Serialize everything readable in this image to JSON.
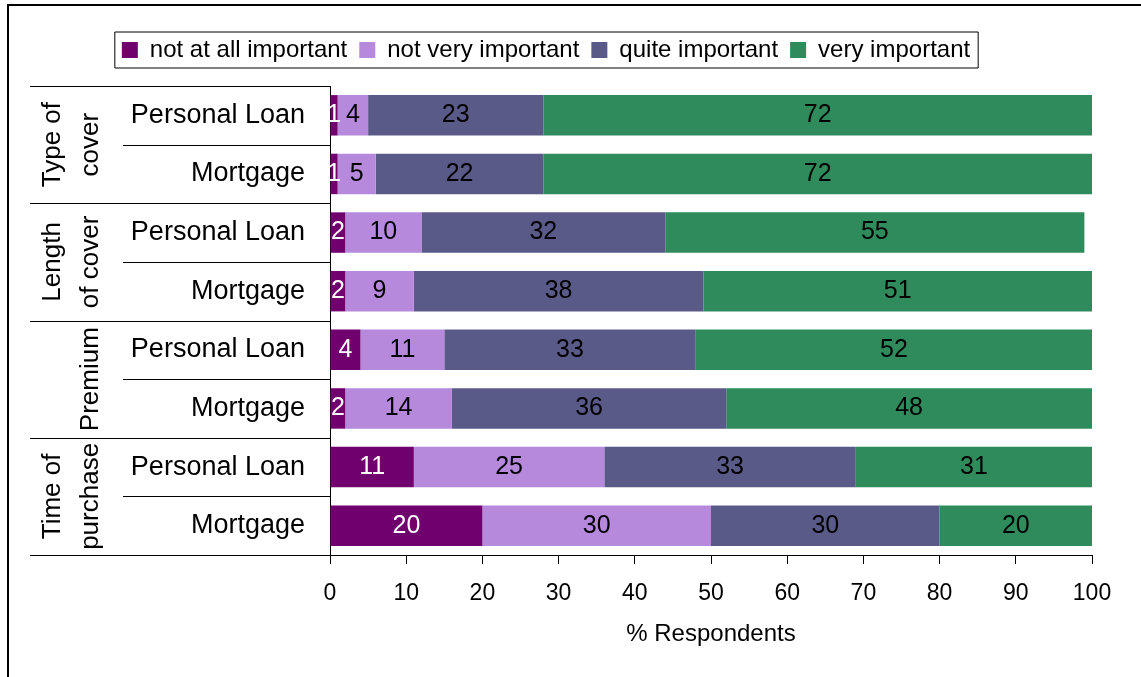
{
  "chart_data": {
    "type": "bar",
    "orientation": "horizontal",
    "stacked": true,
    "categories": [
      "Personal Loan",
      "Mortgage",
      "Personal Loan",
      "Mortgage",
      "Personal Loan",
      "Mortgage",
      "Personal Loan",
      "Mortgage"
    ],
    "annotations": [
      "Type of cover",
      "Length of cover",
      "Premium",
      "Time of purchase"
    ],
    "series": [
      {
        "name": "not at all important",
        "color": "#70006e",
        "values": [
          1,
          1,
          2,
          2,
          4,
          2,
          11,
          20
        ]
      },
      {
        "name": "not very important",
        "color": "#b689dd",
        "values": [
          4,
          5,
          10,
          9,
          11,
          14,
          25,
          30
        ]
      },
      {
        "name": "quite important",
        "color": "#5a5a88",
        "values": [
          23,
          22,
          32,
          38,
          33,
          36,
          33,
          30
        ]
      },
      {
        "name": "very important",
        "color": "#2f8b5c",
        "values": [
          72,
          72,
          55,
          51,
          52,
          48,
          31,
          20
        ]
      }
    ],
    "xlabel": "% Respondents",
    "xlim": [
      0,
      100
    ],
    "xticks": [
      0,
      10,
      20,
      30,
      40,
      50,
      60,
      70,
      80,
      90,
      100
    ],
    "legend": "top",
    "grid": false,
    "data_labels": true
  }
}
